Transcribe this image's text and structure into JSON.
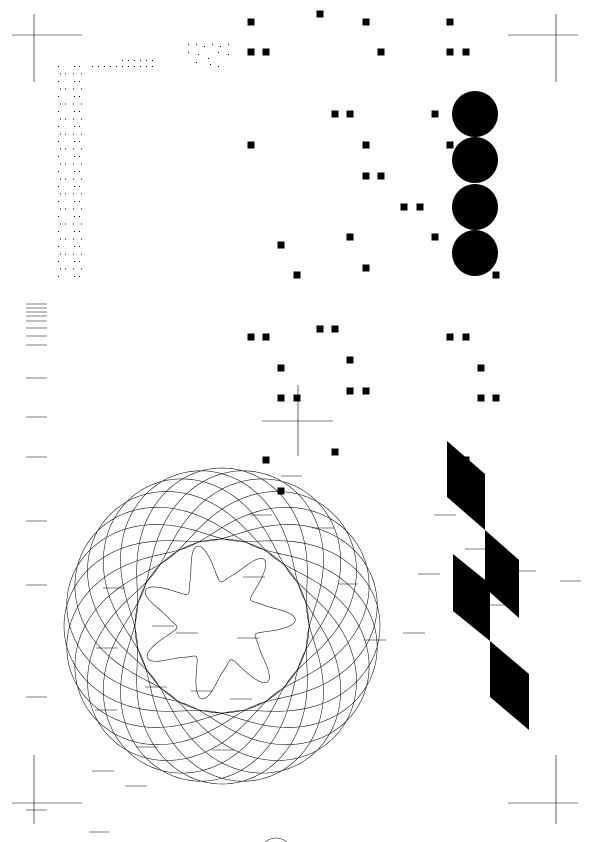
{
  "page": {
    "description_visible_text": [],
    "ink_color": "#000000",
    "paper_color": "#ffffff"
  },
  "marks": {
    "crop_marks": "registration-crop-marks",
    "dot_matrix": "dot-matrix-fragment",
    "square_grid": "scattered-square-marks",
    "circles": "four-filled-circles",
    "rule_lines": "horizontal-rule-marks",
    "crosshair": "center-crosshair",
    "rosette": "spirograph-rosette",
    "inner_star": "wavy-star-outline",
    "parallelograms": "staircase-parallelograms"
  }
}
